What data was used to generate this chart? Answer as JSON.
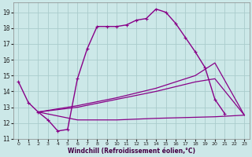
{
  "xlabel": "Windchill (Refroidissement éolien,°C)",
  "background_color": "#cce8e8",
  "grid_color": "#aacccc",
  "line_color": "#880088",
  "xlim": [
    -0.5,
    23.5
  ],
  "ylim": [
    11,
    19.6
  ],
  "yticks": [
    11,
    12,
    13,
    14,
    15,
    16,
    17,
    18,
    19
  ],
  "xticks": [
    0,
    1,
    2,
    3,
    4,
    5,
    6,
    7,
    8,
    9,
    10,
    11,
    12,
    13,
    14,
    15,
    16,
    17,
    18,
    19,
    20,
    21,
    22,
    23
  ],
  "series": [
    {
      "x": [
        0,
        1,
        2,
        3,
        4,
        5,
        6,
        7,
        8,
        9,
        10,
        11,
        12,
        13,
        14,
        15,
        16,
        17,
        18,
        19,
        20,
        21
      ],
      "y": [
        14.6,
        13.3,
        12.7,
        12.2,
        11.5,
        11.6,
        14.8,
        16.7,
        18.1,
        18.1,
        18.1,
        18.2,
        18.5,
        18.6,
        19.2,
        19.0,
        18.3,
        17.4,
        16.5,
        15.5,
        13.5,
        12.6
      ],
      "marker": "+",
      "markersize": 3.5,
      "linewidth": 1.0,
      "color": "#880088"
    },
    {
      "x": [
        2,
        6,
        10,
        14,
        18,
        20,
        23
      ],
      "y": [
        12.7,
        13.1,
        13.6,
        14.2,
        15.0,
        15.8,
        12.5
      ],
      "marker": null,
      "linewidth": 0.9,
      "color": "#880088"
    },
    {
      "x": [
        2,
        6,
        10,
        14,
        18,
        20,
        23
      ],
      "y": [
        12.7,
        13.0,
        13.5,
        14.0,
        14.6,
        14.8,
        12.5
      ],
      "marker": null,
      "linewidth": 0.9,
      "color": "#880088"
    },
    {
      "x": [
        2,
        6,
        10,
        14,
        20,
        23
      ],
      "y": [
        12.7,
        12.2,
        12.2,
        12.3,
        12.4,
        12.5
      ],
      "marker": null,
      "linewidth": 0.9,
      "color": "#880088"
    }
  ]
}
